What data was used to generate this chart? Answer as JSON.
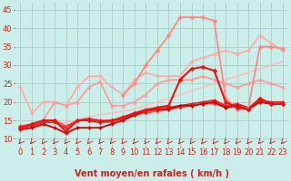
{
  "xlabel": "Vent moyen/en rafales ( km/h )",
  "xlim": [
    -0.5,
    23.5
  ],
  "ylim": [
    8,
    47
  ],
  "yticks": [
    10,
    15,
    20,
    25,
    30,
    35,
    40,
    45
  ],
  "xticks": [
    0,
    1,
    2,
    3,
    4,
    5,
    6,
    7,
    8,
    9,
    10,
    11,
    12,
    13,
    14,
    15,
    16,
    17,
    18,
    19,
    20,
    21,
    22,
    23
  ],
  "bg_color": "#cceee8",
  "grid_color": "#aad4ce",
  "series": [
    {
      "x": [
        0,
        1,
        2,
        3,
        4,
        5,
        6,
        7,
        8,
        9,
        10,
        11,
        12,
        13,
        14,
        15,
        16,
        17,
        18,
        19,
        20,
        21,
        22,
        23
      ],
      "y": [
        12.5,
        13,
        13.5,
        14,
        14.5,
        15,
        16,
        16.5,
        17,
        17.5,
        18,
        19,
        20,
        21,
        22,
        23,
        24,
        25,
        26,
        27,
        28,
        29,
        30,
        31
      ],
      "color": "#ffbbbb",
      "lw": 1.0,
      "marker": null,
      "zorder": 2
    },
    {
      "x": [
        0,
        1,
        2,
        3,
        4,
        5,
        6,
        7,
        8,
        9,
        10,
        11,
        12,
        13,
        14,
        15,
        16,
        17,
        18,
        19,
        20,
        21,
        22,
        23
      ],
      "y": [
        24,
        17,
        20,
        20,
        19,
        24,
        27,
        27,
        24,
        22,
        26,
        28,
        27,
        27,
        27,
        31,
        32,
        33,
        34,
        33,
        34,
        38,
        36,
        34
      ],
      "color": "#ffaaaa",
      "lw": 1.2,
      "marker": "D",
      "ms": 2.0,
      "zorder": 2
    },
    {
      "x": [
        0,
        1,
        2,
        3,
        4,
        5,
        6,
        7,
        8,
        9,
        10,
        11,
        12,
        13,
        14,
        15,
        16,
        17,
        18,
        19,
        20,
        21,
        22,
        23
      ],
      "y": [
        13,
        14,
        15,
        20,
        19,
        20,
        24,
        25.5,
        19,
        19,
        20,
        22,
        25,
        26,
        26,
        26,
        27,
        26,
        25,
        24,
        25,
        26,
        25,
        24
      ],
      "color": "#ff9999",
      "lw": 1.2,
      "marker": "^",
      "ms": 2.5,
      "zorder": 3
    },
    {
      "x": [
        0,
        1,
        2,
        3,
        4,
        5,
        6,
        7,
        8,
        9,
        10,
        11,
        12,
        13,
        14,
        15,
        16,
        17,
        18,
        19,
        20,
        21,
        22,
        23
      ],
      "y": [
        12.5,
        13,
        14,
        13,
        11.5,
        13,
        13,
        13,
        14,
        15,
        16.5,
        17.5,
        18,
        18,
        19,
        19,
        19.5,
        20,
        18.5,
        19,
        18,
        20,
        19.5,
        19.5
      ],
      "color": "#cc0000",
      "lw": 1.3,
      "marker": "P",
      "ms": 2.5,
      "zorder": 4
    },
    {
      "x": [
        0,
        1,
        2,
        3,
        4,
        5,
        6,
        7,
        8,
        9,
        10,
        11,
        12,
        13,
        14,
        15,
        16,
        17,
        18,
        19,
        20,
        21,
        22,
        23
      ],
      "y": [
        13,
        13.5,
        14.5,
        14.5,
        13,
        15,
        15.5,
        15,
        15,
        16,
        17,
        18,
        18.5,
        18.5,
        19,
        19.5,
        20,
        20.5,
        19,
        19.5,
        18.5,
        20.5,
        20,
        20
      ],
      "color": "#dd2222",
      "lw": 1.2,
      "marker": "D",
      "ms": 2.0,
      "zorder": 3
    },
    {
      "x": [
        0,
        1,
        2,
        3,
        4,
        5,
        6,
        7,
        8,
        9,
        10,
        11,
        12,
        13,
        14,
        15,
        16,
        17,
        18,
        19,
        20,
        21,
        22,
        23
      ],
      "y": [
        13.5,
        14,
        15,
        15,
        13.5,
        15,
        15,
        14.5,
        14.5,
        15.5,
        16.5,
        17,
        17.5,
        18,
        18.5,
        19,
        19.5,
        19.5,
        18.5,
        19,
        18,
        20,
        19.5,
        19.5
      ],
      "color": "#ff4444",
      "lw": 1.1,
      "marker": "D",
      "ms": 1.8,
      "zorder": 3
    },
    {
      "x": [
        0,
        1,
        2,
        3,
        4,
        5,
        6,
        7,
        8,
        9,
        10,
        11,
        12,
        13,
        14,
        15,
        16,
        17,
        18,
        19,
        20,
        21,
        22,
        23
      ],
      "y": [
        13,
        14,
        15,
        15,
        12,
        15,
        15,
        14.5,
        15,
        15.5,
        17,
        17.5,
        18.5,
        19,
        26,
        29,
        29.5,
        28.5,
        20,
        18.5,
        18,
        21,
        19.5,
        19.5
      ],
      "color": "#ee1111",
      "lw": 1.5,
      "marker": "D",
      "ms": 2.5,
      "zorder": 4
    },
    {
      "x": [
        9,
        10,
        11,
        12,
        13,
        14,
        15,
        16,
        17,
        18,
        19,
        20,
        21,
        22,
        23
      ],
      "y": [
        22,
        25,
        30,
        34,
        38,
        43,
        43,
        43,
        42,
        21,
        18,
        18.5,
        35,
        35,
        34.5
      ],
      "color": "#ff8888",
      "lw": 1.3,
      "marker": "D",
      "ms": 2.5,
      "zorder": 3
    }
  ],
  "arrow_color": "#cc2222",
  "xlabel_fontsize": 7,
  "tick_fontsize": 6,
  "tick_color": "#cc2222",
  "label_color": "#cc2222"
}
